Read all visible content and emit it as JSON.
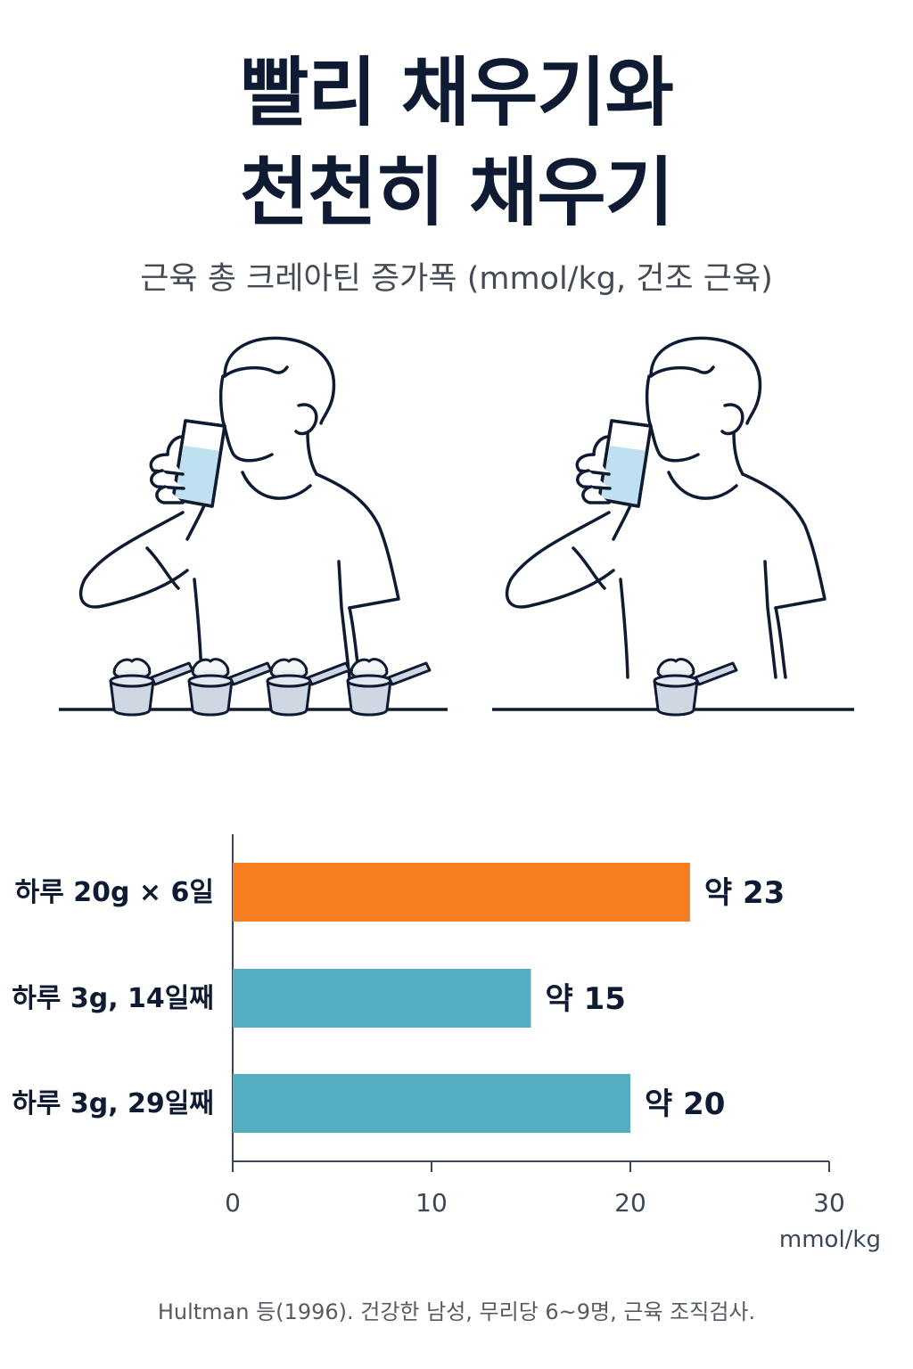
{
  "title_line1": "빨리 채우기와",
  "title_line2": "천천히 채우기",
  "subtitle": "근육 총 크레아틴 증가폭 (mmol/kg, 건조 근육)",
  "illustrations": {
    "left_scoops": 4,
    "right_scoops": 1
  },
  "chart_data": {
    "type": "bar",
    "orientation": "horizontal",
    "categories": [
      "하루 20g × 6일",
      "하루 3g, 14일째",
      "하루 3g, 29일째"
    ],
    "values": [
      23,
      15,
      20
    ],
    "value_labels": [
      "약 23",
      "약 15",
      "약 20"
    ],
    "colors": [
      "#f47e20",
      "#55adc1",
      "#55adc1"
    ],
    "xlim": [
      0,
      30
    ],
    "xticks": [
      0,
      10,
      20,
      30
    ],
    "xlabel": "mmol/kg",
    "grid": false
  },
  "colors": {
    "title": "#0f1b33",
    "accent_orange": "#f47e20",
    "accent_teal": "#55adc1",
    "line": "#0f1b33"
  },
  "footnote": "Hultman 등(1996). 건강한 남성, 무리당 6~9명, 근육 조직검사."
}
